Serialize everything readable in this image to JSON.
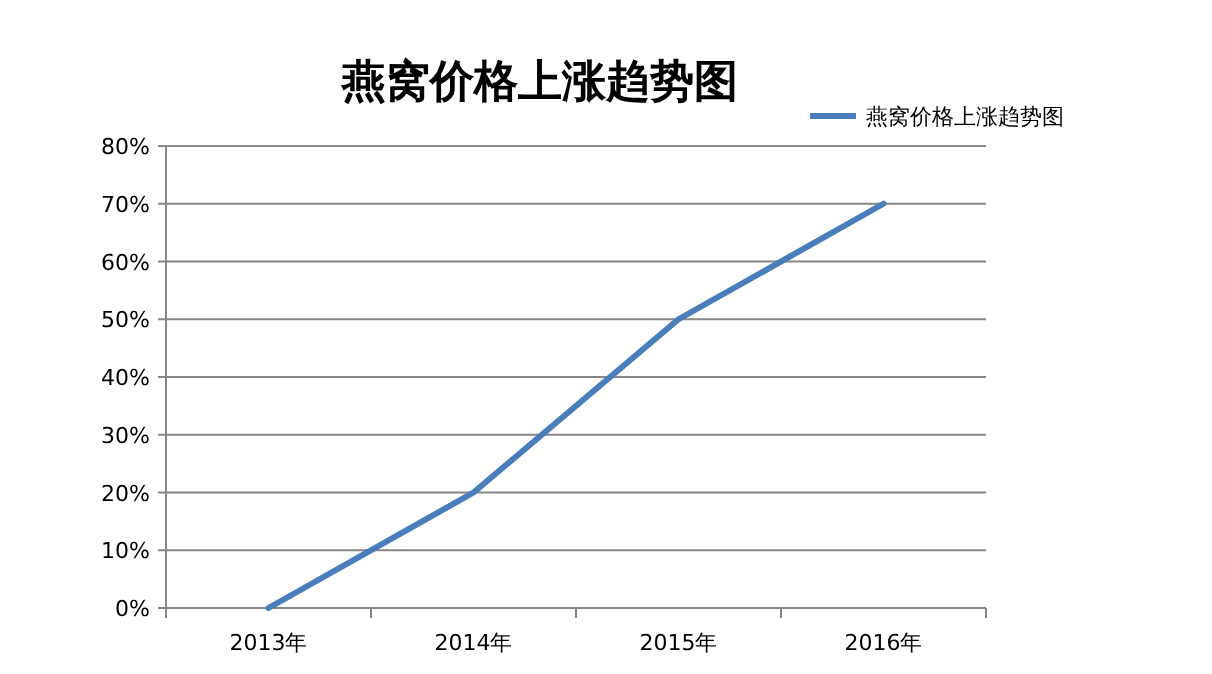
{
  "chart_data": {
    "type": "line",
    "title": "燕窝价格上涨趋势图",
    "categories": [
      "2013年",
      "2014年",
      "2015年",
      "2016年"
    ],
    "series": [
      {
        "name": "燕窝价格上涨趋势图",
        "color": "#4a7ebb",
        "values": [
          0,
          20,
          50,
          70
        ]
      }
    ],
    "ylim": [
      0,
      80
    ],
    "yticks": [
      {
        "value": 0,
        "label": "0%"
      },
      {
        "value": 10,
        "label": "10%"
      },
      {
        "value": 20,
        "label": "20%"
      },
      {
        "value": 30,
        "label": "30%"
      },
      {
        "value": 40,
        "label": "40%"
      },
      {
        "value": 50,
        "label": "50%"
      },
      {
        "value": 60,
        "label": "60%"
      },
      {
        "value": 70,
        "label": "70%"
      },
      {
        "value": 80,
        "label": "80%"
      }
    ],
    "grid": "y",
    "legend": "top right",
    "marker": "none",
    "line_style": "solid"
  }
}
